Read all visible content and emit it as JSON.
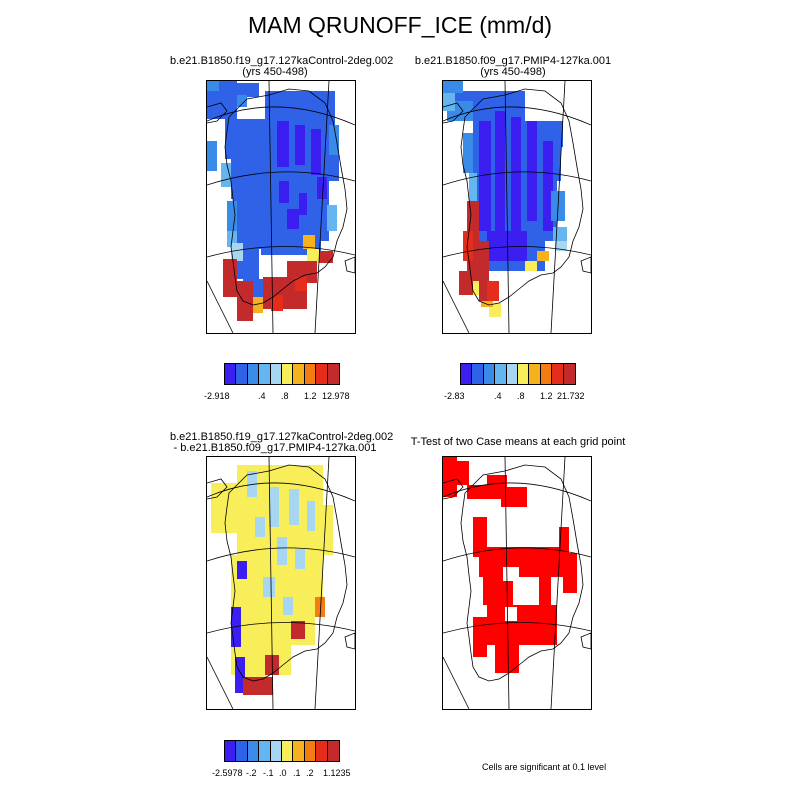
{
  "title": "MAM QRUNOFF_ICE (mm/d)",
  "colors": {
    "c1": "#3a1ff0",
    "c2": "#2f62e6",
    "c3": "#3a8ae8",
    "c4": "#65b6f0",
    "c5": "#a6d6f2",
    "c6": "#f7ee5a",
    "c7": "#f6b21d",
    "c8": "#f47c12",
    "c9": "#e62d1c",
    "c10": "#c22a2c",
    "sig": "#ff0000"
  },
  "panels": {
    "top_left": {
      "title_line1": "b.e21.B1850.f19_g17.127kaControl-2deg.002",
      "title_line2": "(yrs 450-498)"
    },
    "top_right": {
      "title_line1": "b.e21.B1850.f09_g17.PMIP4-127ka.001",
      "title_line2": "(yrs 450-498)"
    },
    "bottom_left": {
      "title_line1": "b.e21.B1850.f19_g17.127kaControl-2deg.002",
      "title_line2": "- b.e21.B1850.f09_g17.PMIP4-127ka.001"
    },
    "bottom_right": {
      "title_line1": "T-Test of two Case means at each grid point"
    }
  },
  "colorbars": {
    "top_left": {
      "labels": [
        "-2.918",
        ".4",
        ".8",
        "1.2",
        "12.978"
      ]
    },
    "top_right": {
      "labels": [
        "-2.83",
        ".4",
        ".8",
        "1.2",
        "21.732"
      ]
    },
    "bottom_left": {
      "labels": [
        "-2.5978",
        "-.2",
        "-.1",
        ".0",
        ".1",
        ".2",
        "1.1235"
      ]
    }
  },
  "note": "Cells are significant at 0.1 level"
}
